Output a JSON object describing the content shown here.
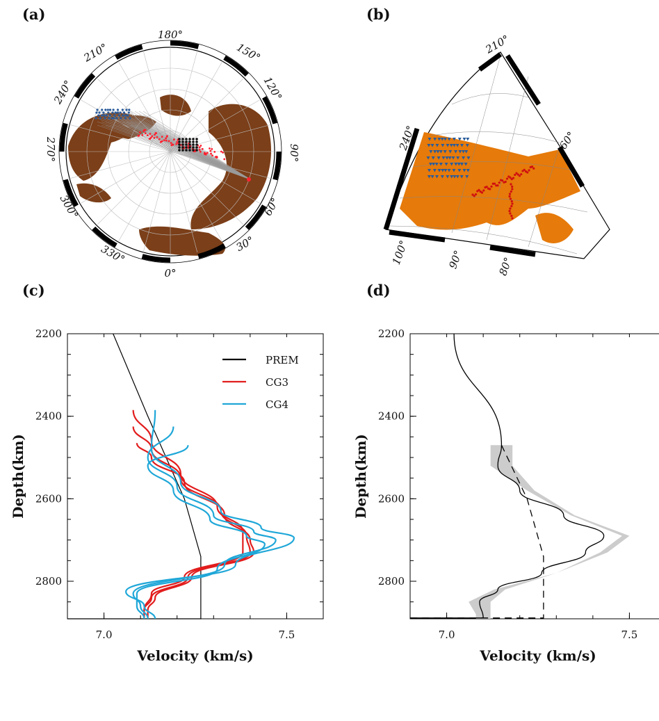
{
  "panels": {
    "a": {
      "label": "(a)",
      "lon_labels": [
        "180°",
        "150°",
        "120°",
        "90°",
        "60°",
        "30°",
        "0°",
        "330°",
        "300°",
        "270°",
        "240°",
        "210°"
      ],
      "land_color": "#7b3f19",
      "ray_color": "#9a9a9a",
      "sample_color": "#ff2030",
      "station_color": "#2a5b9a",
      "event_color": "#111111"
    },
    "b": {
      "label": "(b)",
      "lon_labels": [
        "210°",
        "240°",
        "60°",
        "100°",
        "90°",
        "80°"
      ],
      "land_color": "#e67a0a",
      "station_color": "#2a5b9a",
      "sample_color": "#d01010"
    },
    "c": {
      "label": "(c)"
    },
    "d": {
      "label": "(d)"
    }
  },
  "chart_data": [
    {
      "type": "line",
      "panel": "c",
      "xlabel": "Velocity (km/s)",
      "ylabel": "Depth(km)",
      "xlim": [
        6.9,
        7.6
      ],
      "ylim": [
        2891,
        2200
      ],
      "xticks": [
        7.0,
        7.5
      ],
      "yticks": [
        2200,
        2400,
        2600,
        2800
      ],
      "legend_position": "top-right",
      "series": [
        {
          "name": "PREM",
          "color": "#000000",
          "x": [
            7.025,
            7.12,
            7.22,
            7.265,
            7.265,
            6.9
          ],
          "y": [
            2200,
            2400,
            2600,
            2740,
            2891,
            2891
          ]
        },
        {
          "name": "CG3",
          "color": "#e21d1d",
          "curves": [
            {
              "x": [
                7.08,
                7.13,
                7.21,
                7.31,
                7.38,
                7.38,
                7.22,
                7.13,
                7.11,
                7.11
              ],
              "y": [
                2385,
                2460,
                2540,
                2620,
                2680,
                2730,
                2790,
                2830,
                2870,
                2891
              ]
            },
            {
              "x": [
                7.08,
                7.13,
                7.21,
                7.32,
                7.39,
                7.4,
                7.23,
                7.13,
                7.11,
                7.11
              ],
              "y": [
                2425,
                2480,
                2550,
                2630,
                2690,
                2730,
                2790,
                2840,
                2870,
                2891
              ]
            },
            {
              "x": [
                7.09,
                7.13,
                7.22,
                7.33,
                7.4,
                7.41,
                7.24,
                7.14,
                7.12,
                7.12
              ],
              "y": [
                2465,
                2500,
                2560,
                2640,
                2700,
                2730,
                2790,
                2840,
                2870,
                2891
              ]
            }
          ]
        },
        {
          "name": "CG4",
          "color": "#1fa7d8",
          "curves": [
            {
              "x": [
                7.14,
                7.13,
                7.21,
                7.32,
                7.43,
                7.52,
                7.36,
                7.06,
                7.11,
                7.14
              ],
              "y": [
                2385,
                2480,
                2560,
                2630,
                2670,
                2695,
                2760,
                2825,
                2860,
                2891
              ]
            },
            {
              "x": [
                7.19,
                7.12,
                7.2,
                7.3,
                7.41,
                7.47,
                7.33,
                7.08,
                7.1,
                7.12
              ],
              "y": [
                2425,
                2500,
                2570,
                2640,
                2680,
                2700,
                2760,
                2830,
                2860,
                2891
              ]
            },
            {
              "x": [
                7.23,
                7.12,
                7.19,
                7.29,
                7.39,
                7.44,
                7.31,
                7.09,
                7.09,
                7.11
              ],
              "y": [
                2470,
                2520,
                2580,
                2650,
                2690,
                2710,
                2770,
                2830,
                2860,
                2891
              ]
            }
          ]
        }
      ]
    },
    {
      "type": "line",
      "panel": "d",
      "xlabel": "Velocity (km/s)",
      "ylabel": "Depth(km)",
      "xlim": [
        6.9,
        7.6
      ],
      "ylim": [
        2891,
        2200
      ],
      "xticks": [
        7.0,
        7.5
      ],
      "yticks": [
        2200,
        2400,
        2600,
        2800
      ],
      "series": [
        {
          "style": "solid",
          "color": "#000000",
          "x": [
            7.02,
            7.15,
            7.14,
            7.2,
            7.32,
            7.43,
            7.38,
            7.26,
            7.14,
            7.09,
            7.1,
            6.9
          ],
          "y": [
            2200,
            2470,
            2520,
            2580,
            2640,
            2690,
            2730,
            2780,
            2820,
            2850,
            2889,
            2889
          ]
        },
        {
          "style": "dashed",
          "color": "#000000",
          "x": [
            7.15,
            7.22,
            7.265,
            7.265,
            6.9
          ],
          "y": [
            2470,
            2600,
            2740,
            2889,
            2889
          ]
        },
        {
          "style": "band",
          "color": "#cccccc",
          "x": [
            7.12,
            7.12,
            7.22,
            7.34,
            7.48,
            7.42,
            7.3,
            7.13,
            7.06,
            7.08,
            7.08
          ],
          "upper_x": [
            7.18,
            7.18,
            7.24,
            7.35,
            7.5,
            7.44,
            7.3,
            7.16,
            7.12,
            7.12,
            7.12
          ],
          "y": [
            2470,
            2520,
            2580,
            2640,
            2690,
            2730,
            2780,
            2820,
            2850,
            2880,
            2891
          ]
        }
      ]
    }
  ]
}
